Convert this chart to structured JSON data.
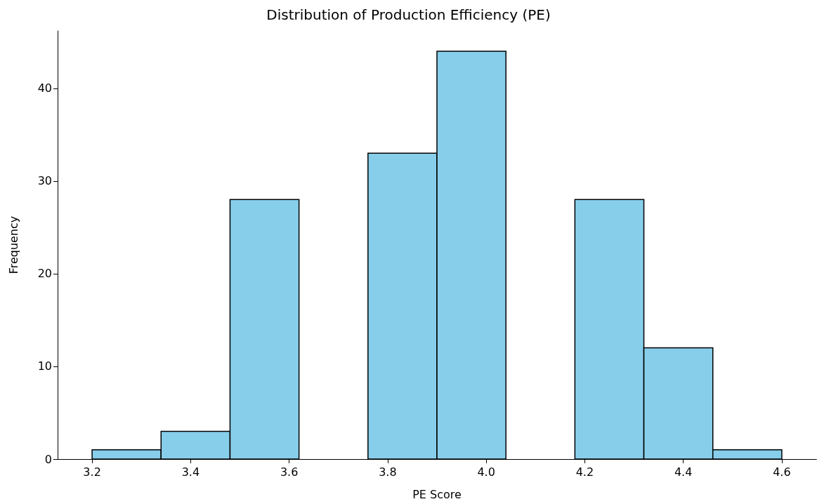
{
  "chart_data": {
    "type": "histogram",
    "title": "Distribution of Production Efficiency (PE)",
    "xlabel": "PE Score",
    "ylabel": "Frequency",
    "bins": [
      3.2,
      3.34,
      3.48,
      3.62,
      3.76,
      3.9,
      4.04,
      4.18,
      4.32,
      4.46,
      4.6
    ],
    "values": [
      1,
      3,
      28,
      0,
      33,
      44,
      0,
      28,
      12,
      1
    ],
    "color": "#87ceeb",
    "xlim": [
      3.13,
      4.67
    ],
    "xticks": [
      3.2,
      3.4,
      3.6,
      3.8,
      {
        "value": 4,
        "label": "4.0"
      },
      4.2,
      4.4,
      4.6
    ],
    "ylim": [
      0,
      46.2
    ],
    "yticks": [
      0,
      10,
      20,
      30,
      40
    ],
    "grid": false
  }
}
